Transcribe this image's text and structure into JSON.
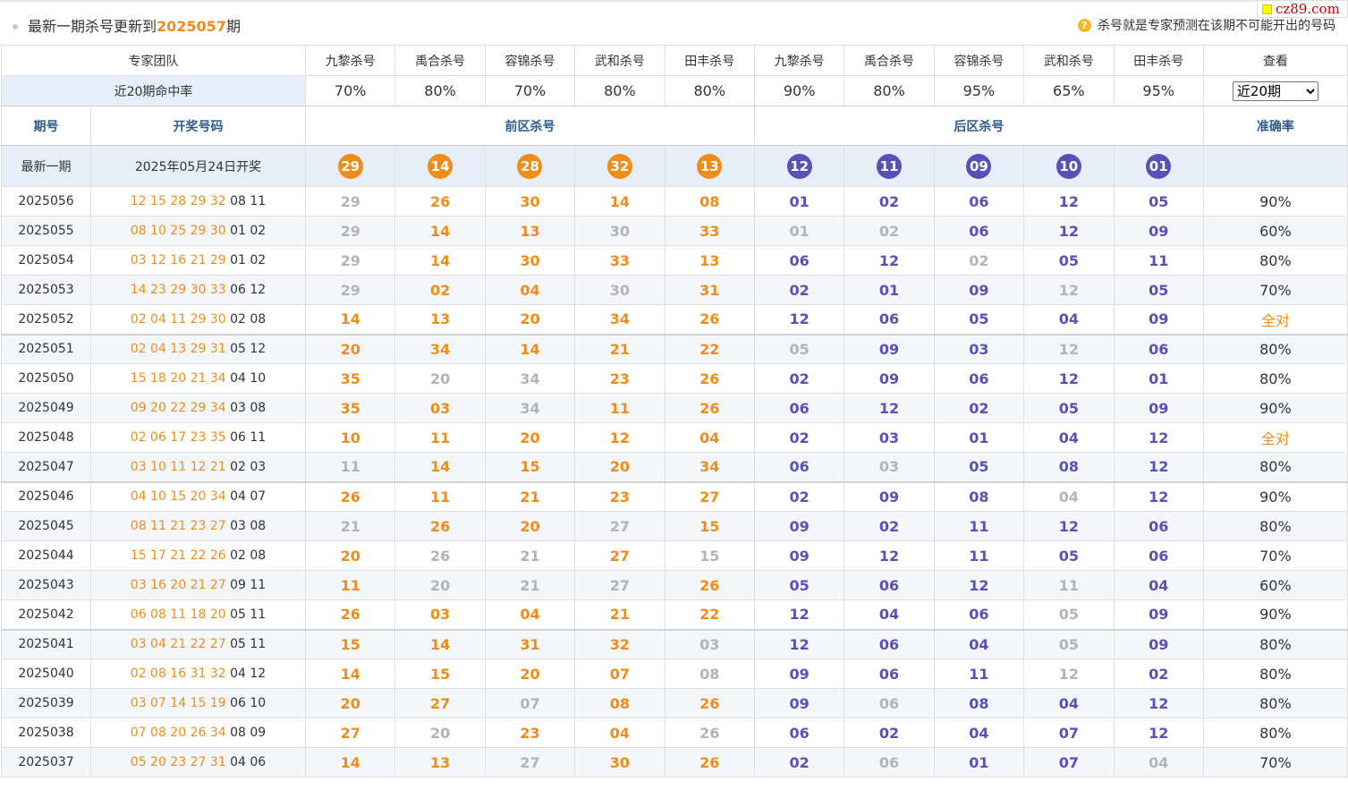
{
  "topbar": {
    "title_prefix": "最新一期杀号更新到",
    "title_issue": "2025057",
    "title_suffix": "期",
    "tip_icon": "question-icon",
    "tip_text": "杀号就是专家预测在该期不可能开出的号码"
  },
  "logo": {
    "text": "cz89.com"
  },
  "experts": {
    "label": "专家团队",
    "names": [
      "九黎杀号",
      "禹合杀号",
      "容锦杀号",
      "武和杀号",
      "田丰杀号",
      "九黎杀号",
      "禹合杀号",
      "容锦杀号",
      "武和杀号",
      "田丰杀号"
    ],
    "view_label": "查看"
  },
  "hit_rate": {
    "label": "近20期命中率",
    "values": [
      "70%",
      "80%",
      "70%",
      "80%",
      "80%",
      "90%",
      "80%",
      "95%",
      "65%",
      "95%"
    ],
    "select_value": "近20期"
  },
  "header": {
    "period": "期号",
    "draw": "开奖号码",
    "front": "前区杀号",
    "back": "后区杀号",
    "accuracy": "准确率"
  },
  "latest": {
    "label": "最新一期",
    "date": "2025年05月24日开奖",
    "front": [
      "29",
      "14",
      "28",
      "32",
      "13"
    ],
    "back": [
      "12",
      "11",
      "09",
      "10",
      "01"
    ]
  },
  "colors": {
    "orange": "#f08c17",
    "purple": "#5b50b7",
    "gray": "#b4b4b4",
    "header_blue": "#2f5a8a"
  },
  "rows": [
    {
      "period": "2025056",
      "front": "12 15 28 29 32",
      "back": "08 11",
      "kills": [
        [
          "29",
          "g"
        ],
        [
          "26",
          "o"
        ],
        [
          "30",
          "o"
        ],
        [
          "14",
          "o"
        ],
        [
          "08",
          "o"
        ],
        [
          "01",
          "p"
        ],
        [
          "02",
          "p"
        ],
        [
          "06",
          "p"
        ],
        [
          "12",
          "p"
        ],
        [
          "05",
          "p"
        ]
      ],
      "acc": "90%"
    },
    {
      "period": "2025055",
      "front": "08 10 25 29 30",
      "back": "01 02",
      "kills": [
        [
          "29",
          "g"
        ],
        [
          "14",
          "o"
        ],
        [
          "13",
          "o"
        ],
        [
          "30",
          "g"
        ],
        [
          "33",
          "o"
        ],
        [
          "01",
          "g"
        ],
        [
          "02",
          "g"
        ],
        [
          "06",
          "p"
        ],
        [
          "12",
          "p"
        ],
        [
          "09",
          "p"
        ]
      ],
      "acc": "60%"
    },
    {
      "period": "2025054",
      "front": "03 12 16 21 29",
      "back": "01 02",
      "kills": [
        [
          "29",
          "g"
        ],
        [
          "14",
          "o"
        ],
        [
          "30",
          "o"
        ],
        [
          "33",
          "o"
        ],
        [
          "13",
          "o"
        ],
        [
          "06",
          "p"
        ],
        [
          "12",
          "p"
        ],
        [
          "02",
          "g"
        ],
        [
          "05",
          "p"
        ],
        [
          "11",
          "p"
        ]
      ],
      "acc": "80%"
    },
    {
      "period": "2025053",
      "front": "14 23 29 30 33",
      "back": "06 12",
      "kills": [
        [
          "29",
          "g"
        ],
        [
          "02",
          "o"
        ],
        [
          "04",
          "o"
        ],
        [
          "30",
          "g"
        ],
        [
          "31",
          "o"
        ],
        [
          "02",
          "p"
        ],
        [
          "01",
          "p"
        ],
        [
          "09",
          "p"
        ],
        [
          "12",
          "g"
        ],
        [
          "05",
          "p"
        ]
      ],
      "acc": "70%"
    },
    {
      "period": "2025052",
      "front": "02 04 11 29 30",
      "back": "02 08",
      "kills": [
        [
          "14",
          "o"
        ],
        [
          "13",
          "o"
        ],
        [
          "20",
          "o"
        ],
        [
          "34",
          "o"
        ],
        [
          "26",
          "o"
        ],
        [
          "12",
          "p"
        ],
        [
          "06",
          "p"
        ],
        [
          "05",
          "p"
        ],
        [
          "04",
          "p"
        ],
        [
          "09",
          "p"
        ]
      ],
      "acc": "全对"
    },
    {
      "period": "2025051",
      "front": "02 04 13 29 31",
      "back": "05 12",
      "kills": [
        [
          "20",
          "o"
        ],
        [
          "34",
          "o"
        ],
        [
          "14",
          "o"
        ],
        [
          "21",
          "o"
        ],
        [
          "22",
          "o"
        ],
        [
          "05",
          "g"
        ],
        [
          "09",
          "p"
        ],
        [
          "03",
          "p"
        ],
        [
          "12",
          "g"
        ],
        [
          "06",
          "p"
        ]
      ],
      "acc": "80%"
    },
    {
      "period": "2025050",
      "front": "15 18 20 21 34",
      "back": "04 10",
      "kills": [
        [
          "35",
          "o"
        ],
        [
          "20",
          "g"
        ],
        [
          "34",
          "g"
        ],
        [
          "23",
          "o"
        ],
        [
          "26",
          "o"
        ],
        [
          "02",
          "p"
        ],
        [
          "09",
          "p"
        ],
        [
          "06",
          "p"
        ],
        [
          "12",
          "p"
        ],
        [
          "01",
          "p"
        ]
      ],
      "acc": "80%"
    },
    {
      "period": "2025049",
      "front": "09 20 22 29 34",
      "back": "03 08",
      "kills": [
        [
          "35",
          "o"
        ],
        [
          "03",
          "o"
        ],
        [
          "34",
          "g"
        ],
        [
          "11",
          "o"
        ],
        [
          "26",
          "o"
        ],
        [
          "06",
          "p"
        ],
        [
          "12",
          "p"
        ],
        [
          "02",
          "p"
        ],
        [
          "05",
          "p"
        ],
        [
          "09",
          "p"
        ]
      ],
      "acc": "90%"
    },
    {
      "period": "2025048",
      "front": "02 06 17 23 35",
      "back": "06 11",
      "kills": [
        [
          "10",
          "o"
        ],
        [
          "11",
          "o"
        ],
        [
          "20",
          "o"
        ],
        [
          "12",
          "o"
        ],
        [
          "04",
          "o"
        ],
        [
          "02",
          "p"
        ],
        [
          "03",
          "p"
        ],
        [
          "01",
          "p"
        ],
        [
          "04",
          "p"
        ],
        [
          "12",
          "p"
        ]
      ],
      "acc": "全对"
    },
    {
      "period": "2025047",
      "front": "03 10 11 12 21",
      "back": "02 03",
      "kills": [
        [
          "11",
          "g"
        ],
        [
          "14",
          "o"
        ],
        [
          "15",
          "o"
        ],
        [
          "20",
          "o"
        ],
        [
          "34",
          "o"
        ],
        [
          "06",
          "p"
        ],
        [
          "03",
          "g"
        ],
        [
          "05",
          "p"
        ],
        [
          "08",
          "p"
        ],
        [
          "12",
          "p"
        ]
      ],
      "acc": "80%"
    },
    {
      "period": "2025046",
      "front": "04 10 15 20 34",
      "back": "04 07",
      "kills": [
        [
          "26",
          "o"
        ],
        [
          "11",
          "o"
        ],
        [
          "21",
          "o"
        ],
        [
          "23",
          "o"
        ],
        [
          "27",
          "o"
        ],
        [
          "02",
          "p"
        ],
        [
          "09",
          "p"
        ],
        [
          "08",
          "p"
        ],
        [
          "04",
          "g"
        ],
        [
          "12",
          "p"
        ]
      ],
      "acc": "90%"
    },
    {
      "period": "2025045",
      "front": "08 11 21 23 27",
      "back": "03 08",
      "kills": [
        [
          "21",
          "g"
        ],
        [
          "26",
          "o"
        ],
        [
          "20",
          "o"
        ],
        [
          "27",
          "g"
        ],
        [
          "15",
          "o"
        ],
        [
          "09",
          "p"
        ],
        [
          "02",
          "p"
        ],
        [
          "11",
          "p"
        ],
        [
          "12",
          "p"
        ],
        [
          "06",
          "p"
        ]
      ],
      "acc": "80%"
    },
    {
      "period": "2025044",
      "front": "15 17 21 22 26",
      "back": "02 08",
      "kills": [
        [
          "20",
          "o"
        ],
        [
          "26",
          "g"
        ],
        [
          "21",
          "g"
        ],
        [
          "27",
          "o"
        ],
        [
          "15",
          "g"
        ],
        [
          "09",
          "p"
        ],
        [
          "12",
          "p"
        ],
        [
          "11",
          "p"
        ],
        [
          "05",
          "p"
        ],
        [
          "06",
          "p"
        ]
      ],
      "acc": "70%"
    },
    {
      "period": "2025043",
      "front": "03 16 20 21 27",
      "back": "09 11",
      "kills": [
        [
          "11",
          "o"
        ],
        [
          "20",
          "g"
        ],
        [
          "21",
          "g"
        ],
        [
          "27",
          "g"
        ],
        [
          "26",
          "o"
        ],
        [
          "05",
          "p"
        ],
        [
          "06",
          "p"
        ],
        [
          "12",
          "p"
        ],
        [
          "11",
          "g"
        ],
        [
          "04",
          "p"
        ]
      ],
      "acc": "60%"
    },
    {
      "period": "2025042",
      "front": "06 08 11 18 20",
      "back": "05 11",
      "kills": [
        [
          "26",
          "o"
        ],
        [
          "03",
          "o"
        ],
        [
          "04",
          "o"
        ],
        [
          "21",
          "o"
        ],
        [
          "22",
          "o"
        ],
        [
          "12",
          "p"
        ],
        [
          "04",
          "p"
        ],
        [
          "06",
          "p"
        ],
        [
          "05",
          "g"
        ],
        [
          "09",
          "p"
        ]
      ],
      "acc": "90%"
    },
    {
      "period": "2025041",
      "front": "03 04 21 22 27",
      "back": "05 11",
      "kills": [
        [
          "15",
          "o"
        ],
        [
          "14",
          "o"
        ],
        [
          "31",
          "o"
        ],
        [
          "32",
          "o"
        ],
        [
          "03",
          "g"
        ],
        [
          "12",
          "p"
        ],
        [
          "06",
          "p"
        ],
        [
          "04",
          "p"
        ],
        [
          "05",
          "g"
        ],
        [
          "09",
          "p"
        ]
      ],
      "acc": "80%"
    },
    {
      "period": "2025040",
      "front": "02 08 16 31 32",
      "back": "04 12",
      "kills": [
        [
          "14",
          "o"
        ],
        [
          "15",
          "o"
        ],
        [
          "20",
          "o"
        ],
        [
          "07",
          "o"
        ],
        [
          "08",
          "g"
        ],
        [
          "09",
          "p"
        ],
        [
          "06",
          "p"
        ],
        [
          "11",
          "p"
        ],
        [
          "12",
          "g"
        ],
        [
          "02",
          "p"
        ]
      ],
      "acc": "80%"
    },
    {
      "period": "2025039",
      "front": "03 07 14 15 19",
      "back": "06 10",
      "kills": [
        [
          "20",
          "o"
        ],
        [
          "27",
          "o"
        ],
        [
          "07",
          "g"
        ],
        [
          "08",
          "o"
        ],
        [
          "26",
          "o"
        ],
        [
          "09",
          "p"
        ],
        [
          "06",
          "g"
        ],
        [
          "08",
          "p"
        ],
        [
          "04",
          "p"
        ],
        [
          "12",
          "p"
        ]
      ],
      "acc": "80%"
    },
    {
      "period": "2025038",
      "front": "07 08 20 26 34",
      "back": "08 09",
      "kills": [
        [
          "27",
          "o"
        ],
        [
          "20",
          "g"
        ],
        [
          "23",
          "o"
        ],
        [
          "04",
          "o"
        ],
        [
          "26",
          "g"
        ],
        [
          "06",
          "p"
        ],
        [
          "02",
          "p"
        ],
        [
          "04",
          "p"
        ],
        [
          "07",
          "p"
        ],
        [
          "12",
          "p"
        ]
      ],
      "acc": "80%"
    },
    {
      "period": "2025037",
      "front": "05 20 23 27 31",
      "back": "04 06",
      "kills": [
        [
          "14",
          "o"
        ],
        [
          "13",
          "o"
        ],
        [
          "27",
          "g"
        ],
        [
          "30",
          "o"
        ],
        [
          "26",
          "o"
        ],
        [
          "02",
          "p"
        ],
        [
          "06",
          "g"
        ],
        [
          "01",
          "p"
        ],
        [
          "07",
          "p"
        ],
        [
          "04",
          "g"
        ]
      ],
      "acc": "70%"
    }
  ]
}
